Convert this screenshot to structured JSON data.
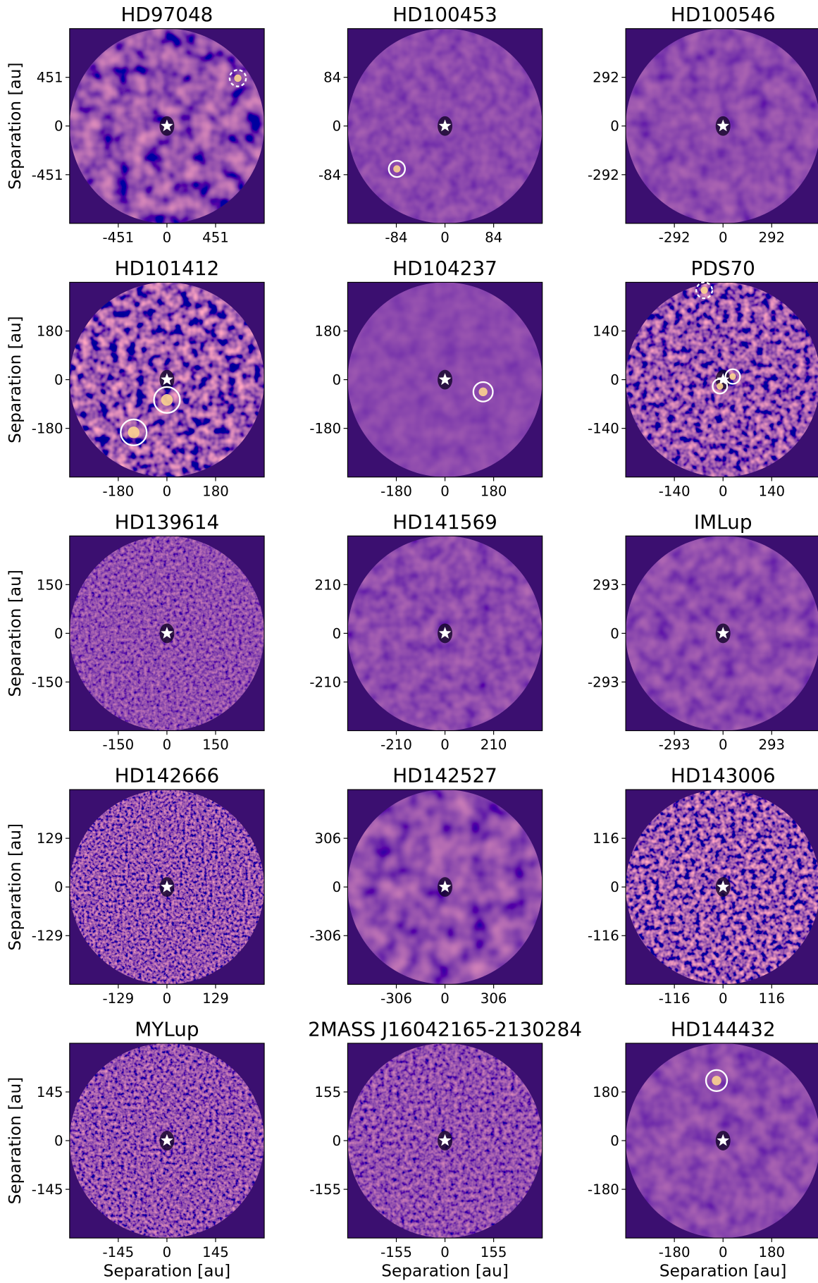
{
  "chart_data": [
    {
      "type": "image",
      "title": "HD97048",
      "xlim": [
        -902,
        902
      ],
      "ylim": [
        -902,
        902
      ],
      "xticks": [
        -451,
        0,
        451
      ],
      "yticks": [
        -451,
        0,
        451
      ],
      "ylabel": "Separation [au]",
      "markers": [
        {
          "x": 657,
          "y": 443,
          "r": 76,
          "style": "dashed"
        }
      ]
    },
    {
      "type": "image",
      "title": "HD100453",
      "xlim": [
        -168,
        168
      ],
      "ylim": [
        -168,
        168
      ],
      "xticks": [
        -84,
        0,
        84
      ],
      "yticks": [
        -84,
        0,
        84
      ],
      "markers": [
        {
          "x": -83,
          "y": -74,
          "r": 14,
          "style": "solid"
        }
      ]
    },
    {
      "type": "image",
      "title": "HD100546",
      "xlim": [
        -584,
        584
      ],
      "ylim": [
        -584,
        584
      ],
      "xticks": [
        -292,
        0,
        292
      ],
      "yticks": [
        -292,
        0,
        292
      ],
      "markers": []
    },
    {
      "type": "image",
      "title": "HD101412",
      "xlim": [
        -360,
        360
      ],
      "ylim": [
        -360,
        360
      ],
      "xticks": [
        -180,
        0,
        180
      ],
      "yticks": [
        -180,
        0,
        180
      ],
      "ylabel": "Separation [au]",
      "markers": [
        {
          "x": -123,
          "y": -195,
          "r": 48,
          "style": "solid"
        },
        {
          "x": 0,
          "y": -75,
          "r": 48,
          "style": "solid"
        }
      ]
    },
    {
      "type": "image",
      "title": "HD104237",
      "xlim": [
        -360,
        360
      ],
      "ylim": [
        -360,
        360
      ],
      "xticks": [
        -180,
        0,
        180
      ],
      "yticks": [
        -180,
        0,
        180
      ],
      "markers": [
        {
          "x": 141,
          "y": -45,
          "r": 36,
          "style": "solid"
        }
      ]
    },
    {
      "type": "image",
      "title": "PDS70",
      "xlim": [
        -280,
        280
      ],
      "ylim": [
        -280,
        280
      ],
      "xticks": [
        -140,
        0,
        140
      ],
      "yticks": [
        -140,
        0,
        140
      ],
      "markers": [
        {
          "x": -54,
          "y": 257,
          "r": 23,
          "style": "dashed"
        },
        {
          "x": -9,
          "y": -19,
          "r": 21,
          "style": "solid"
        },
        {
          "x": 28,
          "y": 9,
          "r": 21,
          "style": "solid"
        }
      ]
    },
    {
      "type": "image",
      "title": "HD139614",
      "xlim": [
        -300,
        300
      ],
      "ylim": [
        -300,
        300
      ],
      "xticks": [
        -150,
        0,
        150
      ],
      "yticks": [
        -150,
        0,
        150
      ],
      "ylabel": "Separation [au]",
      "markers": []
    },
    {
      "type": "image",
      "title": "HD141569",
      "xlim": [
        -420,
        420
      ],
      "ylim": [
        -420,
        420
      ],
      "xticks": [
        -210,
        0,
        210
      ],
      "yticks": [
        -210,
        0,
        210
      ],
      "markers": []
    },
    {
      "type": "image",
      "title": "IMLup",
      "xlim": [
        -586,
        586
      ],
      "ylim": [
        -586,
        586
      ],
      "xticks": [
        -293,
        0,
        293
      ],
      "yticks": [
        -293,
        0,
        293
      ],
      "markers": []
    },
    {
      "type": "image",
      "title": "HD142666",
      "xlim": [
        -258,
        258
      ],
      "ylim": [
        -258,
        258
      ],
      "xticks": [
        -129,
        0,
        129
      ],
      "yticks": [
        -129,
        0,
        129
      ],
      "ylabel": "Separation [au]",
      "markers": []
    },
    {
      "type": "image",
      "title": "HD142527",
      "xlim": [
        -612,
        612
      ],
      "ylim": [
        -612,
        612
      ],
      "xticks": [
        -306,
        0,
        306
      ],
      "yticks": [
        -306,
        0,
        306
      ],
      "markers": []
    },
    {
      "type": "image",
      "title": "HD143006",
      "xlim": [
        -232,
        232
      ],
      "ylim": [
        -232,
        232
      ],
      "xticks": [
        -116,
        0,
        116
      ],
      "yticks": [
        -116,
        0,
        116
      ],
      "markers": []
    },
    {
      "type": "image",
      "title": "MYLup",
      "xlim": [
        -290,
        290
      ],
      "ylim": [
        -290,
        290
      ],
      "xticks": [
        -145,
        0,
        145
      ],
      "yticks": [
        -145,
        0,
        145
      ],
      "ylabel": "Separation [au]",
      "xlabel": "Separation [au]",
      "markers": []
    },
    {
      "type": "image",
      "title": "2MASS J16042165-2130284",
      "xlim": [
        -310,
        310
      ],
      "ylim": [
        -310,
        310
      ],
      "xticks": [
        -155,
        0,
        155
      ],
      "yticks": [
        -155,
        0,
        155
      ],
      "xlabel": "Separation [au]",
      "markers": []
    },
    {
      "type": "image",
      "title": "HD144432",
      "xlim": [
        -360,
        360
      ],
      "ylim": [
        -360,
        360
      ],
      "xticks": [
        -180,
        0,
        180
      ],
      "yticks": [
        -180,
        0,
        180
      ],
      "xlabel": "Separation [au]",
      "markers": [
        {
          "x": -24,
          "y": 222,
          "r": 39,
          "style": "solid"
        }
      ]
    }
  ]
}
